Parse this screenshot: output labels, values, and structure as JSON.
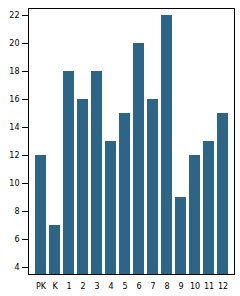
{
  "chart_data": {
    "type": "bar",
    "categories": [
      "PK",
      "K",
      "1",
      "2",
      "3",
      "4",
      "5",
      "6",
      "7",
      "8",
      "9",
      "10",
      "11",
      "12"
    ],
    "values": [
      12,
      7,
      18,
      16,
      18,
      13,
      15,
      20,
      16,
      22,
      9,
      12,
      13,
      15
    ],
    "color": "#2e6586",
    "ylim": [
      3.5,
      22.5
    ],
    "yticks": [
      4,
      6,
      8,
      10,
      12,
      14,
      16,
      18,
      20,
      22
    ],
    "grid": false
  }
}
